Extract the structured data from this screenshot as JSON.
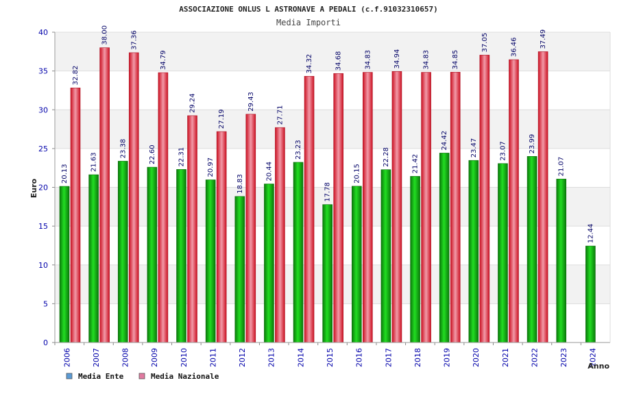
{
  "chart_data": {
    "type": "bar",
    "title": "ASSOCIAZIONE ONLUS L ASTRONAVE A PEDALI (c.f.91032310657)",
    "subtitle": "Media Importi",
    "ylabel": "Euro",
    "xlabel": "Anno",
    "ylim": [
      0,
      40
    ],
    "yticks": [
      0,
      5,
      10,
      15,
      20,
      25,
      30,
      35,
      40
    ],
    "grid": true,
    "legend_position": "bottom-left",
    "categories": [
      "2006",
      "2007",
      "2008",
      "2009",
      "2010",
      "2011",
      "2012",
      "2013",
      "2014",
      "2015",
      "2016",
      "2017",
      "2018",
      "2019",
      "2020",
      "2021",
      "2022",
      "2023",
      "2024"
    ],
    "series": [
      {
        "name": "Media Ente",
        "legend_color": "#5b9bd5",
        "bar_color": "#11aa11",
        "values": [
          20.13,
          21.63,
          23.38,
          22.6,
          22.31,
          20.97,
          18.83,
          20.44,
          23.23,
          17.78,
          20.15,
          22.28,
          21.42,
          24.42,
          23.47,
          23.07,
          23.99,
          21.07,
          12.44
        ],
        "labels": [
          "20.13",
          "21.63",
          "23.38",
          "22.60",
          "22.31",
          "20.97",
          "18.83",
          "20.44",
          "23.23",
          "17.78",
          "20.15",
          "22.28",
          "21.42",
          "24.42",
          "23.47",
          "23.07",
          "23.99",
          "21.07",
          "12.44"
        ]
      },
      {
        "name": "Media Nazionale",
        "legend_color": "#e07aa0",
        "bar_color": "#ee2233",
        "values": [
          32.82,
          38.0,
          37.36,
          34.79,
          29.24,
          27.19,
          29.43,
          27.71,
          34.32,
          34.68,
          34.83,
          34.94,
          34.83,
          34.85,
          37.05,
          36.46,
          37.49,
          null,
          null
        ],
        "labels": [
          "32.82",
          "38.00",
          "37.36",
          "34.79",
          "29.24",
          "27.19",
          "29.43",
          "27.71",
          "34.32",
          "34.68",
          "34.83",
          "34.94",
          "34.83",
          "34.85",
          "37.05",
          "36.46",
          "37.49",
          null,
          null
        ]
      }
    ]
  }
}
